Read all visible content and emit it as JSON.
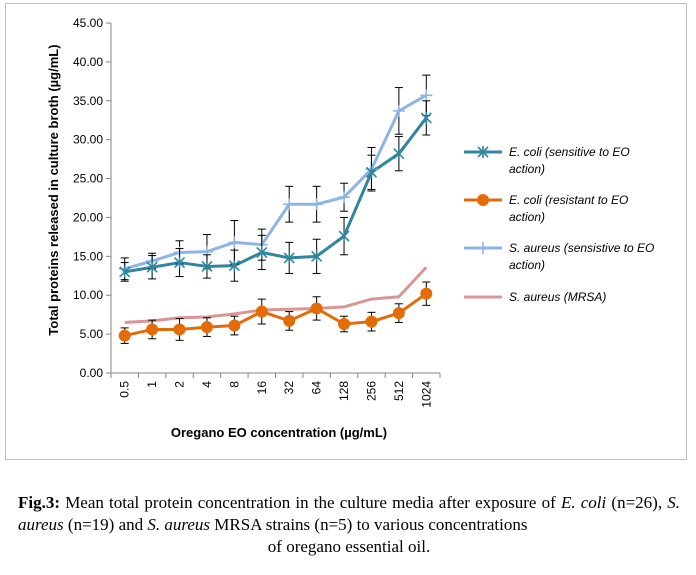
{
  "chart_data": {
    "type": "line",
    "xlabel": "Oregano EO concentration (µg/mL)",
    "ylabel": "Total proteins released in culture broth (µg/mL)",
    "categories": [
      "0.5",
      "1",
      "2",
      "4",
      "8",
      "16",
      "32",
      "64",
      "128",
      "256",
      "512",
      "1024"
    ],
    "ylim": [
      0,
      45
    ],
    "y_ticks": [
      "0.00",
      "5.00",
      "10.00",
      "15.00",
      "20.00",
      "25.00",
      "30.00",
      "35.00",
      "40.00",
      "45.00"
    ],
    "y_tick_values": [
      0,
      5,
      10,
      15,
      20,
      25,
      30,
      35,
      40,
      45
    ],
    "grid": false,
    "legend_position": "right",
    "series": [
      {
        "name": "E. coli (sensitive to EO action)",
        "name_lines": [
          "E. coli (sensitive to EO",
          "action)"
        ],
        "color": "#31859c",
        "marker": "asterisk",
        "values": [
          13.0,
          13.6,
          14.2,
          13.7,
          13.8,
          15.5,
          14.8,
          15.0,
          17.6,
          25.8,
          28.2,
          32.8
        ],
        "errors": [
          1.2,
          1.5,
          1.8,
          1.5,
          2.0,
          2.2,
          2.0,
          2.2,
          2.4,
          2.2,
          2.2,
          2.2
        ]
      },
      {
        "name": "E. coli (resistant to EO action)",
        "name_lines": [
          "E. coli (resistant to EO",
          "action)"
        ],
        "color": "#e36c09",
        "marker": "circle",
        "values": [
          4.8,
          5.6,
          5.6,
          5.9,
          6.1,
          7.9,
          6.7,
          8.3,
          6.3,
          6.6,
          7.7,
          10.2
        ],
        "errors": [
          1.0,
          1.2,
          1.4,
          1.2,
          1.2,
          1.6,
          1.2,
          1.5,
          1.0,
          1.2,
          1.2,
          1.5
        ]
      },
      {
        "name": "S. aureus (sensistive to EO action)",
        "name_lines": [
          "S. aureus (sensistive to EO",
          "action)"
        ],
        "color": "#8eb4e3",
        "marker": "plus",
        "values": [
          13.4,
          14.4,
          15.5,
          15.6,
          16.8,
          16.5,
          21.7,
          21.7,
          22.6,
          26.2,
          33.7,
          35.7
        ],
        "errors": [
          1.4,
          1.0,
          1.5,
          2.2,
          2.8,
          2.0,
          2.3,
          2.3,
          1.8,
          2.8,
          3.0,
          2.6
        ]
      },
      {
        "name": "S. aureus (MRSA)",
        "name_lines": [
          "S. aureus (MRSA)"
        ],
        "color": "#d99694",
        "marker": "none",
        "values": [
          6.5,
          6.7,
          7.1,
          7.2,
          7.6,
          8.1,
          8.2,
          8.3,
          8.5,
          9.5,
          9.8,
          13.6
        ],
        "errors": [
          0,
          0,
          0,
          0,
          0,
          0,
          0,
          0,
          0,
          0,
          0,
          0
        ]
      }
    ]
  },
  "caption": {
    "fig_label": "Fig.3:",
    "seg1": " Mean total protein concentration in the culture media after exposure of ",
    "ecoli": "E. coli",
    "seg2": "(n=26), ",
    "saureus1": "S. aureus",
    "seg3": " (n=19) and ",
    "saureus2": "S. aureus",
    "seg4": " MRSA strains (n=5) to various concentrations",
    "line3": "of oregano essential oil."
  }
}
